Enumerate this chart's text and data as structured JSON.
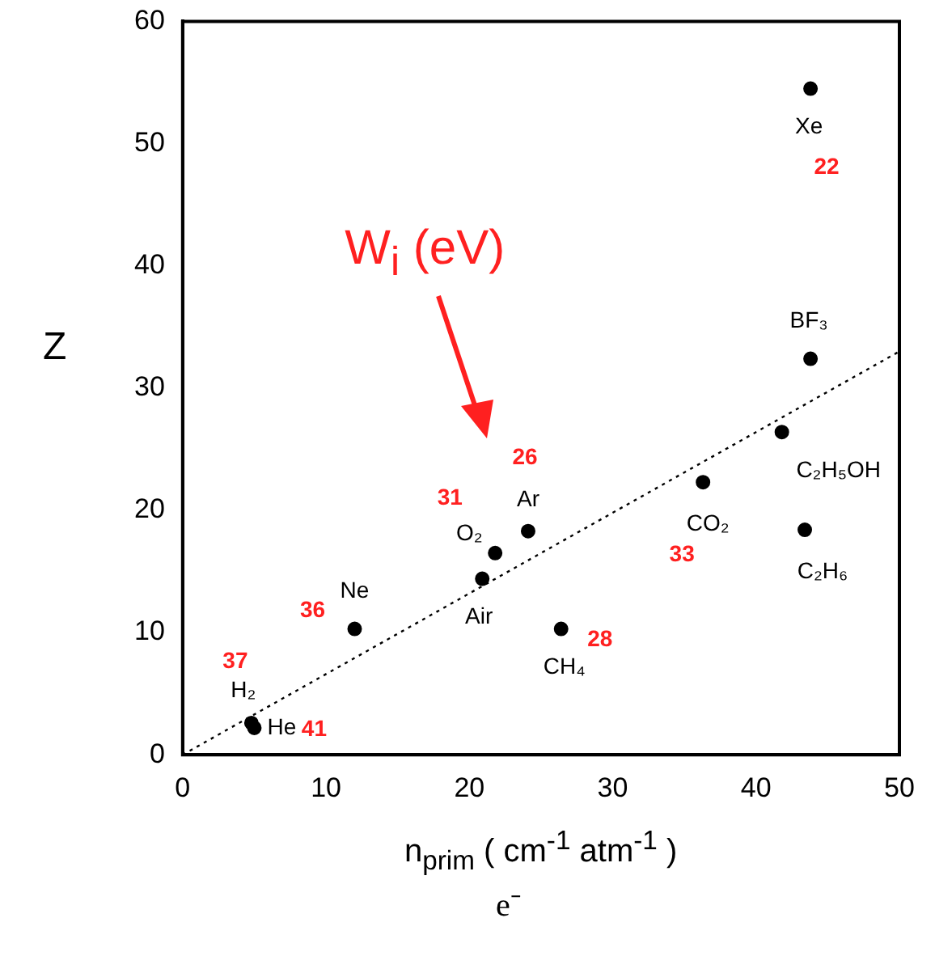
{
  "chart_data": {
    "type": "scatter",
    "xlabel": "n$_{prim}$ ( cm$^{-1}$ atm$^{-1}$ )",
    "ylabel": "Z",
    "xlim": [
      0,
      50
    ],
    "xticks": [
      0,
      10,
      20,
      30,
      40,
      50
    ],
    "ylim": [
      0,
      60
    ],
    "yticks": [
      0,
      10,
      20,
      30,
      40,
      50,
      60
    ],
    "grid": false,
    "legend": false,
    "marker": "circle",
    "series": [
      {
        "color": "#000000",
        "x": [
          4.8,
          5.0,
          12.0,
          20.9,
          21.8,
          24.1,
          26.4,
          36.3,
          41.8,
          43.4,
          43.8,
          43.8
        ],
        "values": [
          2.6,
          2.2,
          10.3,
          14.4,
          16.5,
          18.3,
          10.3,
          22.3,
          26.4,
          18.4,
          32.4,
          54.5
        ]
      },
      {
        "type": "line",
        "color": "#000000",
        "x": [
          0,
          50
        ],
        "values": [
          0,
          33.0
        ],
        "line_style": "dotted",
        "marker": "none"
      }
    ],
    "annotations": [
      {
        "text": "H₂",
        "x": 4.8,
        "y": 2.6
      },
      {
        "text": "He",
        "x": 5.0,
        "y": 2.2
      },
      {
        "text": "Ne",
        "x": 12.0,
        "y": 10.3
      },
      {
        "text": "Air",
        "x": 20.9,
        "y": 14.4
      },
      {
        "text": "O₂",
        "x": 21.8,
        "y": 16.5
      },
      {
        "text": "Ar",
        "x": 24.1,
        "y": 18.3
      },
      {
        "text": "CH₄",
        "x": 26.4,
        "y": 10.3
      },
      {
        "text": "CO₂",
        "x": 36.3,
        "y": 22.3
      },
      {
        "text": "C₂H₅OH",
        "x": 41.8,
        "y": 26.4
      },
      {
        "text": "C₂H₆",
        "x": 43.4,
        "y": 18.4
      },
      {
        "text": "BF₃",
        "x": 43.8,
        "y": 32.4
      },
      {
        "text": "Xe",
        "x": 43.8,
        "y": 54.5
      },
      {
        "text": "37",
        "x": 4.8,
        "y": 2.6
      },
      {
        "text": "41",
        "x": 5.0,
        "y": 2.2
      },
      {
        "text": "36",
        "x": 12.0,
        "y": 10.3
      },
      {
        "text": "31",
        "x": 21.8,
        "y": 16.5
      },
      {
        "text": "26",
        "x": 24.1,
        "y": 18.3
      },
      {
        "text": "28",
        "x": 26.4,
        "y": 10.3
      },
      {
        "text": "33",
        "x": 36.3,
        "y": 22.3
      },
      {
        "text": "22",
        "x": 43.8,
        "y": 54.5
      },
      "W$_{i}$ (eV)",
      "e⁻"
    ]
  }
}
